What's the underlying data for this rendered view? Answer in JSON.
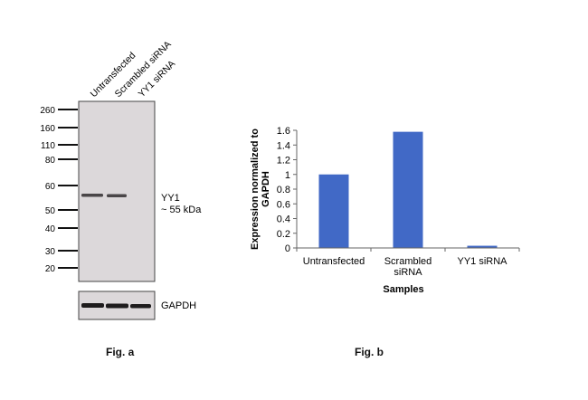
{
  "figure_a": {
    "label": "Fig. a",
    "lanes": [
      "Untransfected",
      "Scrambled siRNA",
      "YY1 siRNA"
    ],
    "markers": [
      "260",
      "160",
      "110",
      "80",
      "60",
      "50",
      "40",
      "30",
      "20"
    ],
    "band_label_line1": "YY1",
    "band_label_line2": "~ 55 kDa",
    "loading_control": "GAPDH"
  },
  "figure_b": {
    "label": "Fig. b"
  },
  "chart_data": {
    "type": "bar",
    "categories": [
      "Untransfected",
      "Scrambled siRNA",
      "YY1 siRNA"
    ],
    "category_lines": [
      [
        "Untransfected"
      ],
      [
        "Scrambled",
        "siRNA"
      ],
      [
        "YY1 siRNA"
      ]
    ],
    "values": [
      1.0,
      1.58,
      0.03
    ],
    "xlabel": "Samples",
    "ylabel_lines": [
      "Expression  normalized to",
      "GAPDH"
    ],
    "ylim": [
      0,
      1.6
    ],
    "yticks": [
      "0",
      "0.2",
      "0.4",
      "0.6",
      "0.8",
      "1",
      "1.2",
      "1.4",
      "1.6"
    ],
    "grid": false,
    "bar_color": "#4169c6"
  }
}
